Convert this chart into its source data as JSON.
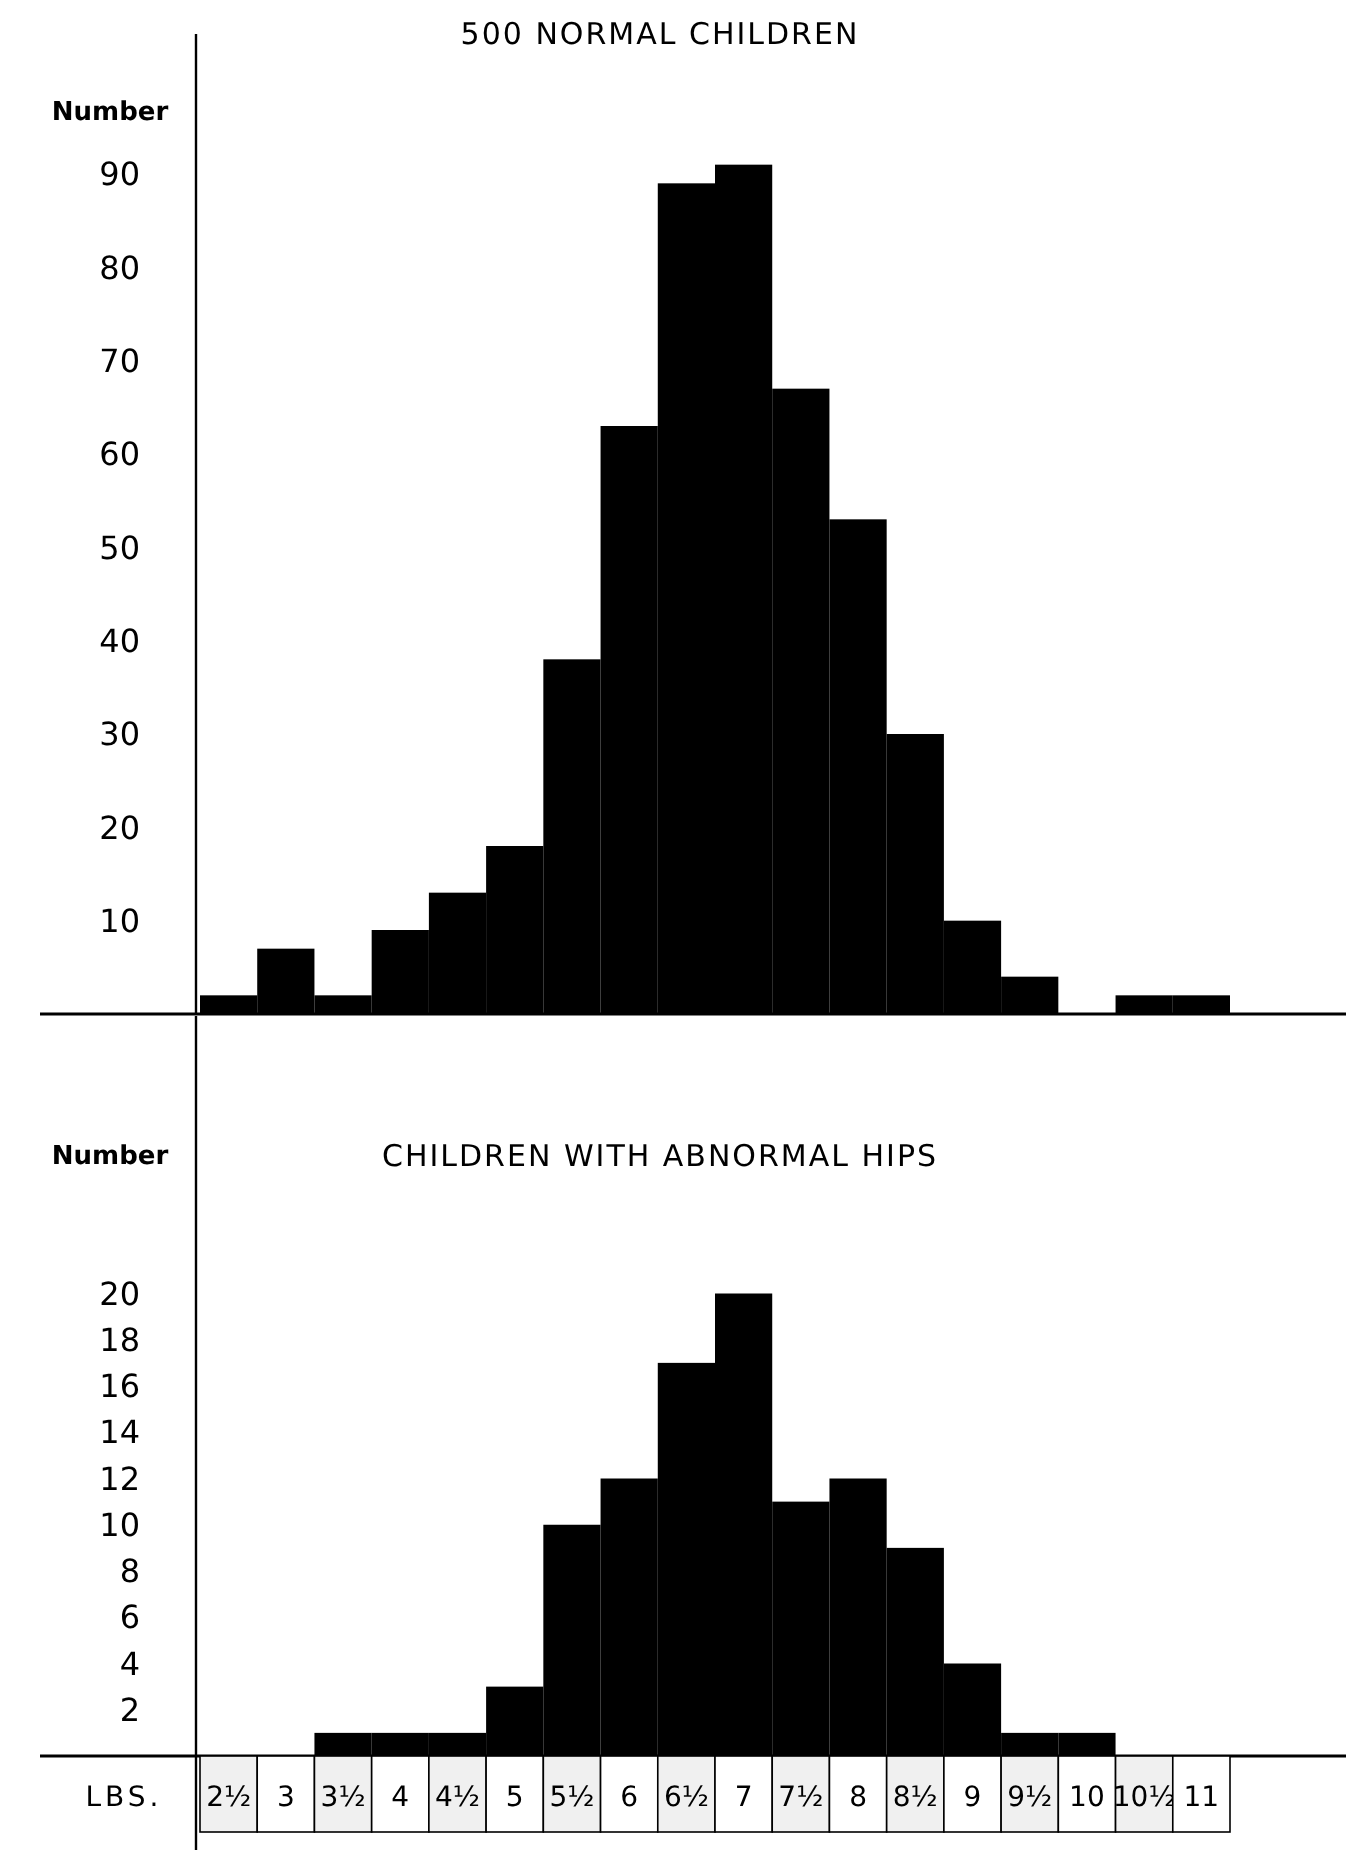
{
  "chart_data": [
    {
      "type": "bar",
      "title": "500 NORMAL CHILDREN",
      "ylabel": "Number",
      "categories": [
        "2½",
        "3",
        "3½",
        "4",
        "4½",
        "5",
        "5½",
        "6",
        "6½",
        "7",
        "7½",
        "8",
        "8½",
        "9",
        "9½",
        "10",
        "10½",
        "11"
      ],
      "values": [
        2,
        7,
        2,
        9,
        13,
        18,
        38,
        63,
        89,
        91,
        67,
        53,
        30,
        10,
        4,
        0,
        2,
        2
      ],
      "color": "#000000",
      "ylim": [
        0,
        105
      ],
      "yticks": [
        10,
        20,
        30,
        40,
        50,
        60,
        70,
        80,
        90
      ],
      "grid": false,
      "tick_labels": "y"
    },
    {
      "type": "bar",
      "title": "CHILDREN WITH ABNORMAL HIPS",
      "ylabel": "Number",
      "xlabel": "LBS.",
      "categories": [
        "2½",
        "3",
        "3½",
        "4",
        "4½",
        "5",
        "5½",
        "6",
        "6½",
        "7",
        "7½",
        "8",
        "8½",
        "9",
        "9½",
        "10",
        "10½",
        "11"
      ],
      "values": [
        0,
        0,
        1,
        1,
        1,
        3,
        10,
        12,
        17,
        20,
        11,
        12,
        9,
        4,
        1,
        1,
        0,
        0
      ],
      "color": "#000000",
      "ylim": [
        0,
        32
      ],
      "yticks": [
        2,
        4,
        6,
        8,
        10,
        12,
        14,
        16,
        18,
        20
      ],
      "grid": false
    }
  ]
}
